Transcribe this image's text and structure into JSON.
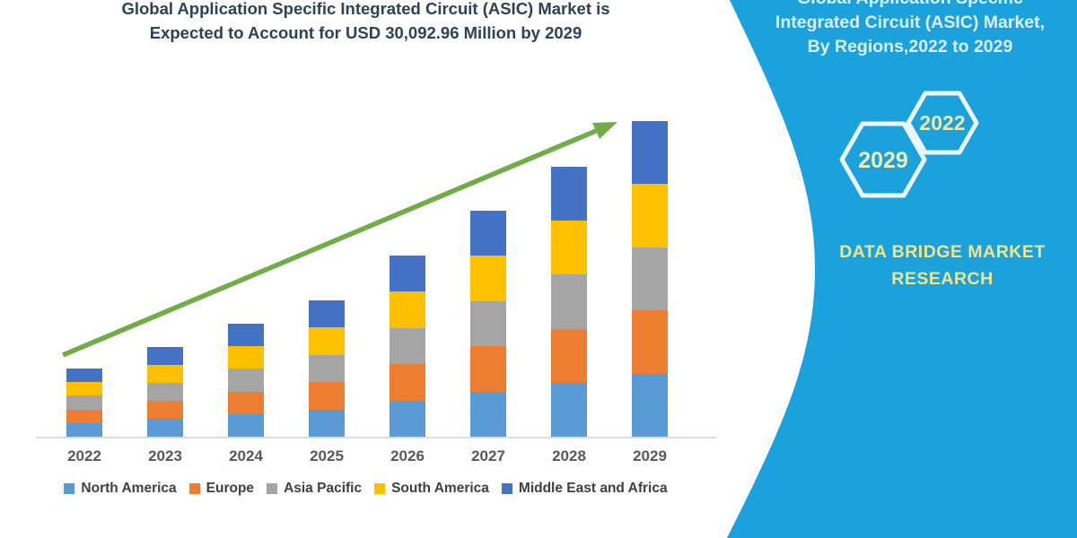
{
  "title": {
    "line1": "Global Application Specific Integrated Circuit (ASIC) Market is",
    "line2": "Expected to Account for USD 30,092.96 Million by 2029"
  },
  "side_panel": {
    "heading_line1": "Global Application Specific",
    "heading_line2": "Integrated Circuit (ASIC) Market,",
    "heading_line3": "By Regions,2022 to 2029",
    "hexagon_back_label": "2029",
    "hexagon_front_label": "2022",
    "brand_line1": "DATA BRIDGE MARKET",
    "brand_line2": "RESEARCH",
    "colors": {
      "background": "#1BA1DC",
      "heading_text": "#D9F1FB",
      "hexagon_stroke": "#EAF8FD",
      "hexagon_label": "#EDF0B4",
      "brand_text": "#F2E588"
    }
  },
  "chart_data": {
    "type": "bar",
    "stacked": true,
    "title": "",
    "xlabel": "",
    "ylabel": "",
    "categories": [
      "2022",
      "2023",
      "2024",
      "2025",
      "2026",
      "2027",
      "2028",
      "2029"
    ],
    "series": [
      {
        "name": "North America",
        "color": "#5B9BD5",
        "values": [
          1300,
          1710,
          2155,
          2600,
          3455,
          4310,
          5145,
          6018.59
        ]
      },
      {
        "name": "Europe",
        "color": "#ED7D31",
        "values": [
          1300,
          1710,
          2155,
          2600,
          3455,
          4310,
          5145,
          6018.59
        ]
      },
      {
        "name": "Asia Pacific",
        "color": "#A5A5A5",
        "values": [
          1300,
          1710,
          2155,
          2600,
          3455,
          4310,
          5145,
          6018.59
        ]
      },
      {
        "name": "South America",
        "color": "#FFC000",
        "values": [
          1300,
          1710,
          2155,
          2600,
          3455,
          4310,
          5145,
          6018.59
        ]
      },
      {
        "name": "Middle East and Africa",
        "color": "#4472C4",
        "values": [
          1300,
          1710,
          2155,
          2600,
          3455,
          4310,
          5145,
          6018.59
        ]
      }
    ],
    "totals_usd_million_estimated": [
      6500,
      8550,
      10775,
      13000,
      17275,
      21550,
      25725,
      30092.96
    ],
    "stated_2029_total": "USD 30,092.96 Million",
    "values_note": "Only the 2029 total is printed on the image; yearly and regional values are estimated from bar heights",
    "legend_position": "bottom",
    "trend_arrow_color": "#70AD47",
    "axis": {
      "x_tick_color": "#595959",
      "baseline_color": "#DCDCDC",
      "y_axis": "hidden"
    }
  }
}
